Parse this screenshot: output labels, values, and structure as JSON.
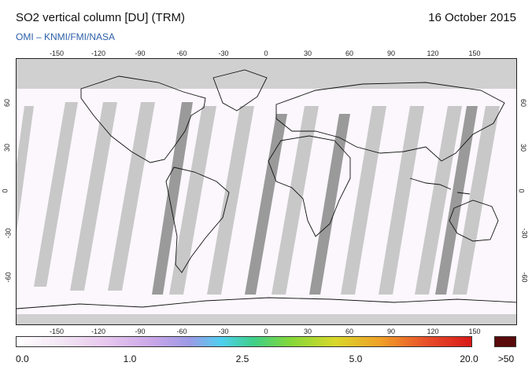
{
  "header": {
    "title": "SO2 vertical column [DU] (TRM)",
    "date": "16 October 2015",
    "source": "OMI  –  KNMI/FMI/NASA"
  },
  "map": {
    "lon_ticks": [
      "-150",
      "-120",
      "-90",
      "-60",
      "-30",
      "0",
      "30",
      "60",
      "90",
      "120",
      "150"
    ],
    "lat_ticks": [
      "60",
      "30",
      "0",
      "-30",
      "-60"
    ],
    "colors": {
      "background": "#fbf7fc",
      "no_data": "#d0d0d0",
      "swath_gap": "#c8c8c8",
      "overlap": "#9a9a9a",
      "coast": "#111111"
    }
  },
  "colorbar": {
    "labels": [
      "0.0",
      "1.0",
      "2.5",
      "5.0",
      "20.0",
      ">50"
    ],
    "max_color": "#5a0a0a"
  }
}
